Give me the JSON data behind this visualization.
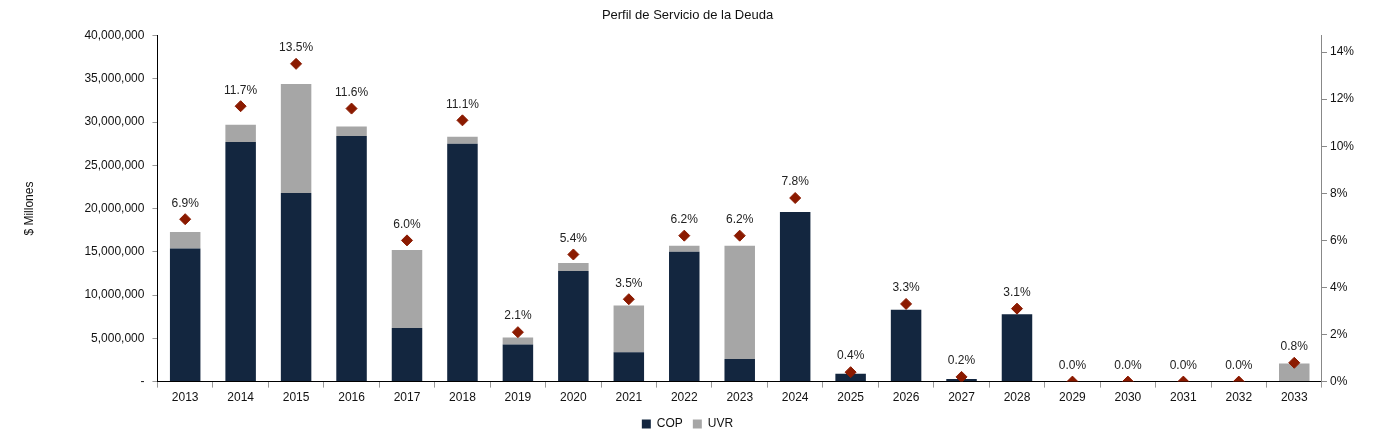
{
  "chart_data": {
    "type": "bar",
    "title": "Perfil de Servicio de la Deuda",
    "ylabel": "$ Millones",
    "categories": [
      "2013",
      "2014",
      "2015",
      "2016",
      "2017",
      "2018",
      "2019",
      "2020",
      "2021",
      "2022",
      "2023",
      "2024",
      "2025",
      "2026",
      "2027",
      "2028",
      "2029",
      "2030",
      "2031",
      "2032",
      "2033"
    ],
    "stacked": true,
    "legend": "bottom",
    "series": [
      {
        "name": "COP",
        "color": "#13263f",
        "values": [
          15400000,
          27700000,
          21800000,
          28400000,
          6200000,
          27500000,
          4300000,
          12800000,
          3400000,
          15000000,
          2600000,
          19600000,
          900000,
          8300000,
          300000,
          7800000,
          0,
          0,
          0,
          0,
          0
        ]
      },
      {
        "name": "UVR",
        "color": "#a6a6a6",
        "values": [
          1900000,
          2000000,
          12600000,
          1100000,
          9000000,
          800000,
          800000,
          900000,
          5400000,
          700000,
          13100000,
          0,
          0,
          0,
          0,
          0,
          0,
          0,
          0,
          0,
          2100000
        ]
      },
      {
        "type": "scatter",
        "axis": "y2",
        "marker": "diamond",
        "color": "#8b1a00",
        "values": [
          6.9,
          11.7,
          13.5,
          11.6,
          6.0,
          11.1,
          2.1,
          5.4,
          3.5,
          6.2,
          6.2,
          7.8,
          0.4,
          3.3,
          0.2,
          3.1,
          0.0,
          0.0,
          0.0,
          0.0,
          0.8
        ],
        "value_labels": [
          "6.9%",
          "11.7%",
          "13.5%",
          "11.6%",
          "6.0%",
          "11.1%",
          "2.1%",
          "5.4%",
          "3.5%",
          "6.2%",
          "6.2%",
          "7.8%",
          "0.4%",
          "3.3%",
          "0.2%",
          "3.1%",
          "0.0%",
          "0.0%",
          "0.0%",
          "0.0%",
          "0.8%"
        ]
      }
    ],
    "ylim": [
      0,
      40000000
    ],
    "yticks": [
      {
        "value": 0,
        "label": "-"
      },
      {
        "value": 5000000,
        "label": "5,000,000"
      },
      {
        "value": 10000000,
        "label": "10,000,000"
      },
      {
        "value": 15000000,
        "label": "15,000,000"
      },
      {
        "value": 20000000,
        "label": "20,000,000"
      },
      {
        "value": 25000000,
        "label": "25,000,000"
      },
      {
        "value": 30000000,
        "label": "30,000,000"
      },
      {
        "value": 35000000,
        "label": "35,000,000"
      },
      {
        "value": 40000000,
        "label": "40,000,000"
      }
    ],
    "y2lim": [
      0,
      14.7
    ],
    "y2ticks": [
      {
        "value": 0,
        "label": "0%"
      },
      {
        "value": 2,
        "label": "2%"
      },
      {
        "value": 4,
        "label": "4%"
      },
      {
        "value": 6,
        "label": "6%"
      },
      {
        "value": 8,
        "label": "8%"
      },
      {
        "value": 10,
        "label": "10%"
      },
      {
        "value": 12,
        "label": "12%"
      },
      {
        "value": 14,
        "label": "14%"
      }
    ]
  }
}
